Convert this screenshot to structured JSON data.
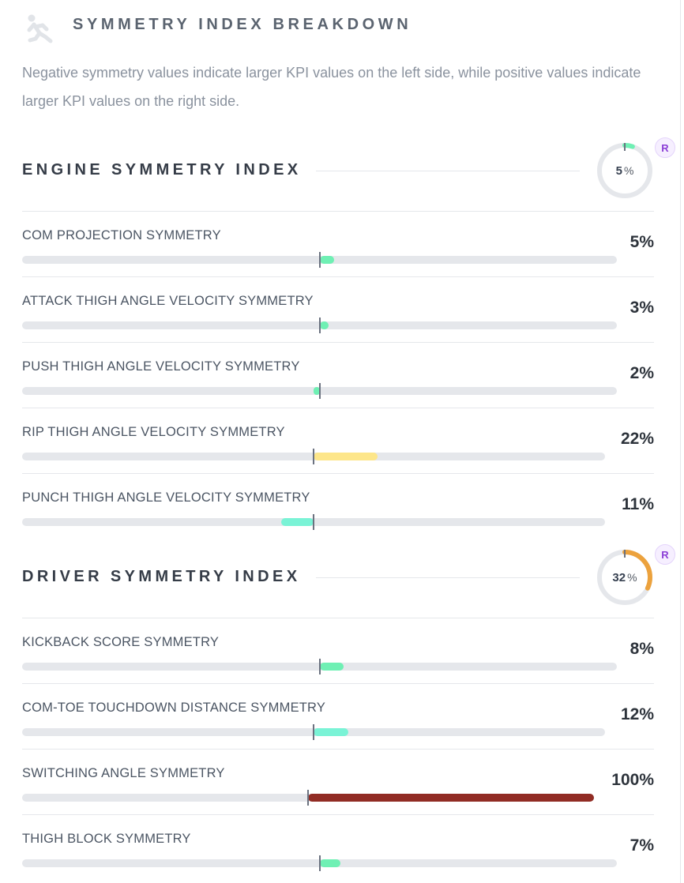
{
  "header": {
    "title": "SYMMETRY INDEX BREAKDOWN",
    "icon": "running-figure-icon",
    "description": "Negative symmetry values indicate larger KPI values on the left side, while positive values indicate larger KPI values on the right side."
  },
  "colors": {
    "green": "#6ff0b4",
    "teal": "#7af3d6",
    "yellow": "#fde68a",
    "dark_red": "#912c24",
    "orange": "#eca23d",
    "track": "#e5e7eb"
  },
  "sections": [
    {
      "title": "ENGINE SYMMETRY INDEX",
      "gauge_value": 5,
      "gauge_unit": "%",
      "badge": "R",
      "gauge_color": "#6ff0b4",
      "rows": [
        {
          "label": "COM PROJECTION SYMMETRY",
          "value": "5%",
          "signed": 5,
          "color": "#6ff0b4"
        },
        {
          "label": "ATTACK THIGH ANGLE VELOCITY SYMMETRY",
          "value": "3%",
          "signed": 3,
          "color": "#6ff0b4"
        },
        {
          "label": "PUSH THIGH ANGLE VELOCITY SYMMETRY",
          "value": "2%",
          "signed": -2,
          "color": "#6ff0b4"
        },
        {
          "label": "RIP THIGH ANGLE VELOCITY SYMMETRY",
          "value": "22%",
          "signed": 22,
          "color": "#fde68a"
        },
        {
          "label": "PUNCH THIGH ANGLE VELOCITY SYMMETRY",
          "value": "11%",
          "signed": -11,
          "color": "#7af3d6"
        }
      ]
    },
    {
      "title": "DRIVER SYMMETRY INDEX",
      "gauge_value": 32,
      "gauge_unit": "%",
      "badge": "R",
      "gauge_color": "#eca23d",
      "rows": [
        {
          "label": "KICKBACK SCORE SYMMETRY",
          "value": "8%",
          "signed": 8,
          "color": "#6ff0b4"
        },
        {
          "label": "COM-TOE TOUCHDOWN DISTANCE SYMMETRY",
          "value": "12%",
          "signed": 12,
          "color": "#7af3d6"
        },
        {
          "label": "SWITCHING ANGLE SYMMETRY",
          "value": "100%",
          "signed": 100,
          "color": "#912c24"
        },
        {
          "label": "THIGH BLOCK SYMMETRY",
          "value": "7%",
          "signed": 7,
          "color": "#6ff0b4"
        }
      ]
    }
  ]
}
